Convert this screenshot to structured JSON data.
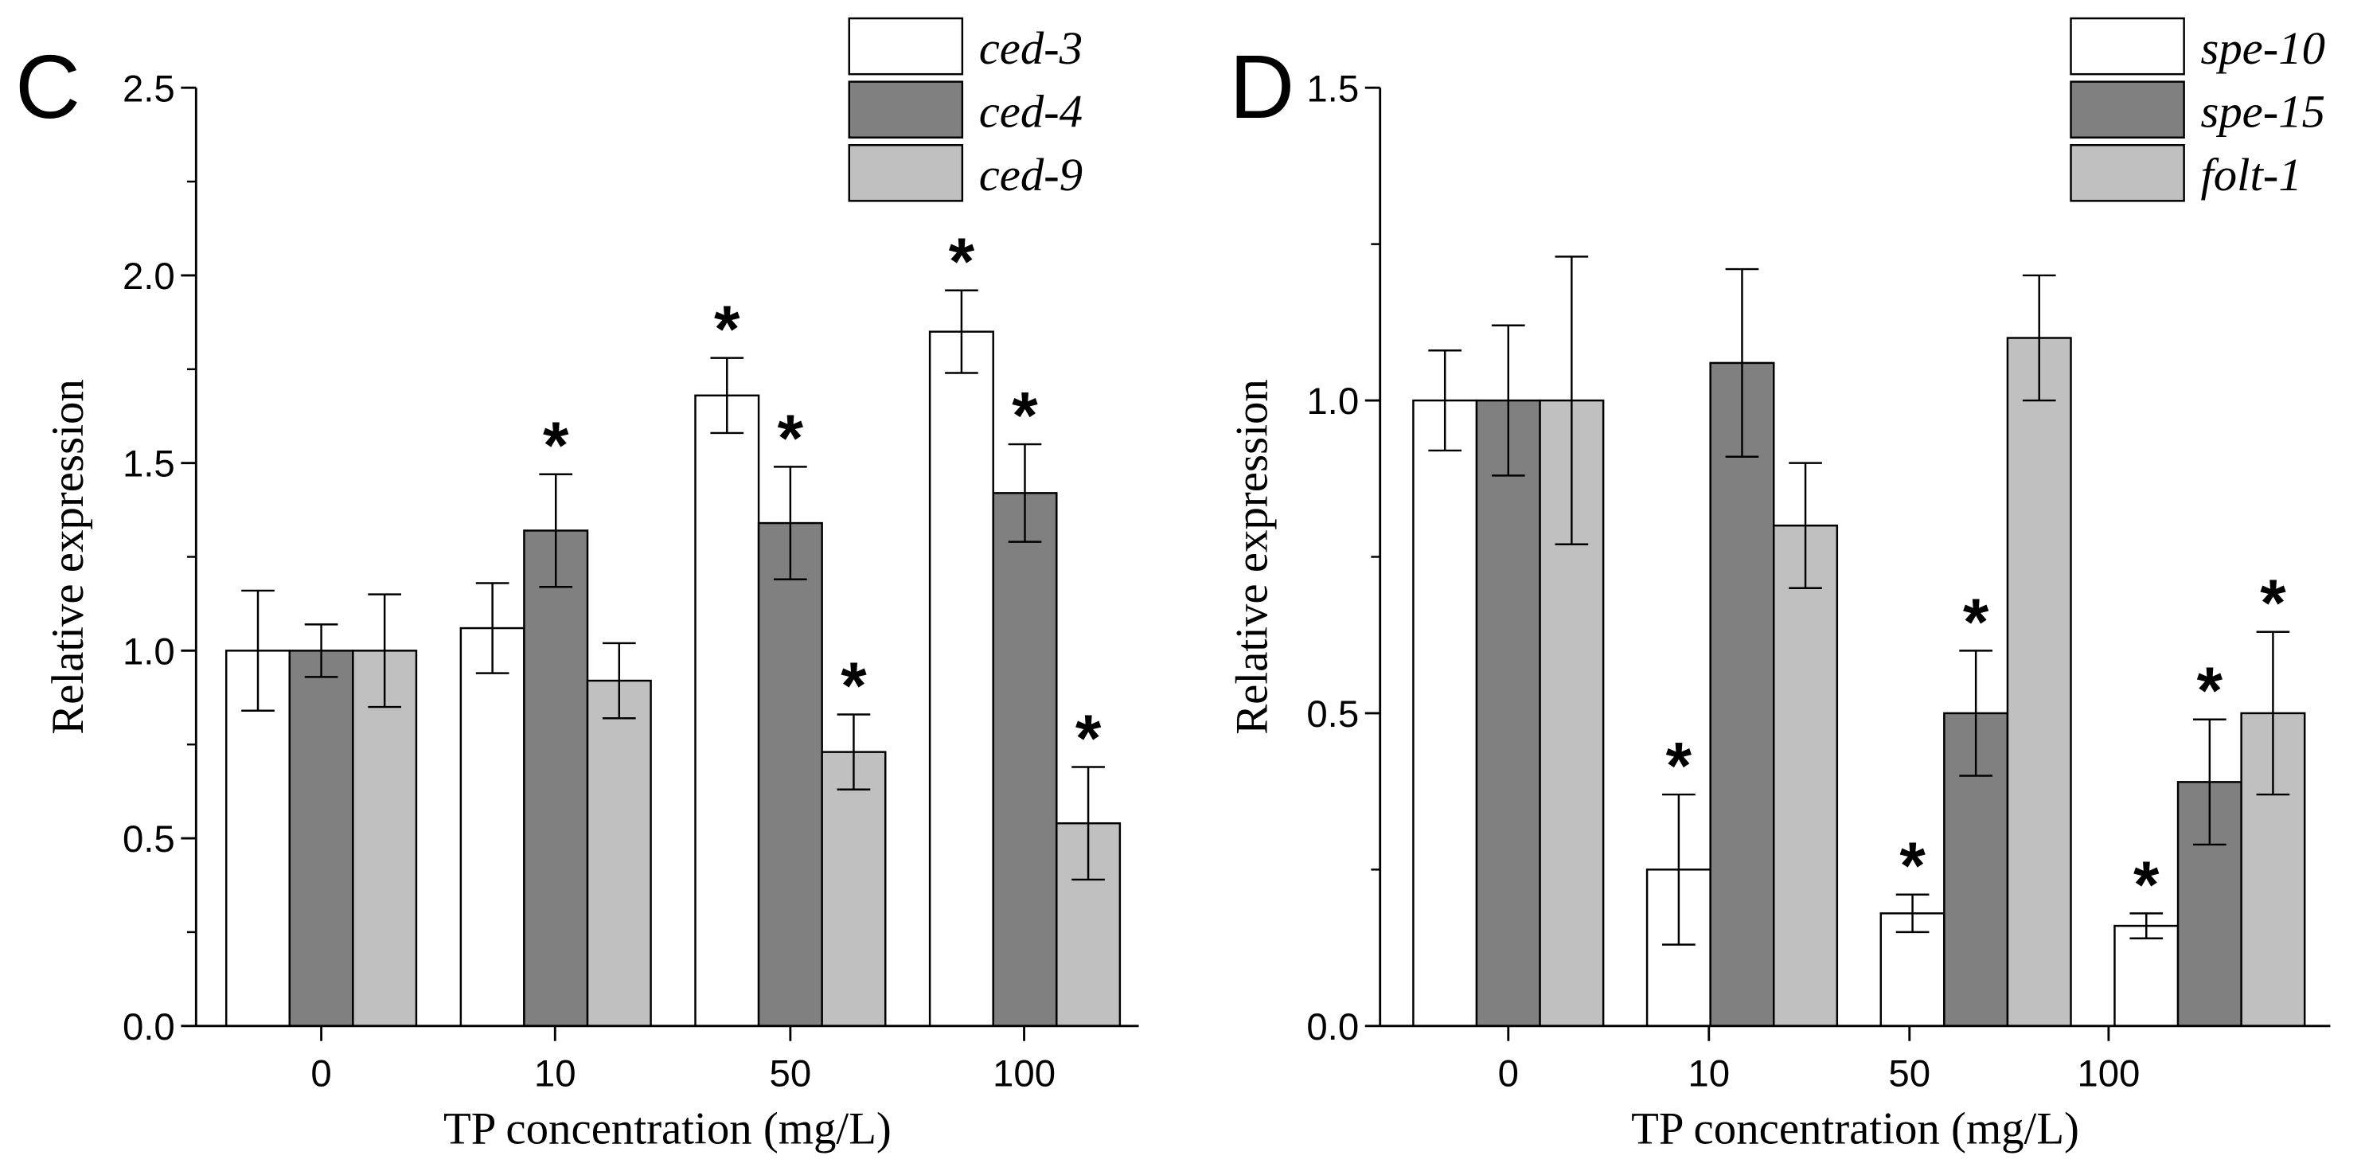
{
  "chart_data": [
    {
      "type": "bar",
      "panel_label": "C",
      "xlabel": "TP concentration (mg/L)",
      "ylabel": "Relative expression",
      "ylim": [
        0,
        2.5
      ],
      "yticks": [
        "0.0",
        "0.5",
        "1.0",
        "1.5",
        "2.0",
        "2.5"
      ],
      "categories": [
        "0",
        "10",
        "50",
        "100"
      ],
      "legend_position": "top-right",
      "series": [
        {
          "name": "ced-3",
          "color": "#ffffff",
          "values": [
            1.0,
            1.06,
            1.68,
            1.85
          ],
          "errors": [
            0.16,
            0.12,
            0.1,
            0.11
          ],
          "significant": [
            false,
            false,
            true,
            true
          ]
        },
        {
          "name": "ced-4",
          "color": "#808080",
          "values": [
            1.0,
            1.32,
            1.34,
            1.42
          ],
          "errors": [
            0.07,
            0.15,
            0.15,
            0.13
          ],
          "significant": [
            false,
            true,
            true,
            true
          ]
        },
        {
          "name": "ced-9",
          "color": "#c0c0c0",
          "values": [
            1.0,
            0.92,
            0.73,
            0.54
          ],
          "errors": [
            0.15,
            0.1,
            0.1,
            0.15
          ],
          "significant": [
            false,
            false,
            true,
            true
          ]
        }
      ],
      "significance_marker": "*"
    },
    {
      "type": "bar",
      "panel_label": "D",
      "xlabel": "TP concentration (mg/L)",
      "ylabel": "Relative expression",
      "ylim": [
        0,
        1.5
      ],
      "yticks": [
        "0.0",
        "0.5",
        "1.0",
        "1.5"
      ],
      "categories": [
        "0",
        "10",
        "50",
        "100"
      ],
      "legend_position": "top-right",
      "series": [
        {
          "name": "spe-10",
          "color": "#ffffff",
          "values": [
            1.0,
            0.25,
            0.18,
            0.16
          ],
          "errors": [
            0.08,
            0.12,
            0.03,
            0.02
          ],
          "significant": [
            false,
            true,
            true,
            true
          ]
        },
        {
          "name": "spe-15",
          "color": "#808080",
          "values": [
            1.0,
            1.06,
            0.5,
            0.39
          ],
          "errors": [
            0.12,
            0.15,
            0.1,
            0.1
          ],
          "significant": [
            false,
            false,
            true,
            true
          ]
        },
        {
          "name": "folt-1",
          "color": "#c0c0c0",
          "values": [
            1.0,
            0.8,
            1.1,
            0.5
          ],
          "errors": [
            0.23,
            0.1,
            0.1,
            0.13
          ],
          "significant": [
            false,
            false,
            false,
            true
          ]
        }
      ],
      "significance_marker": "*"
    }
  ]
}
